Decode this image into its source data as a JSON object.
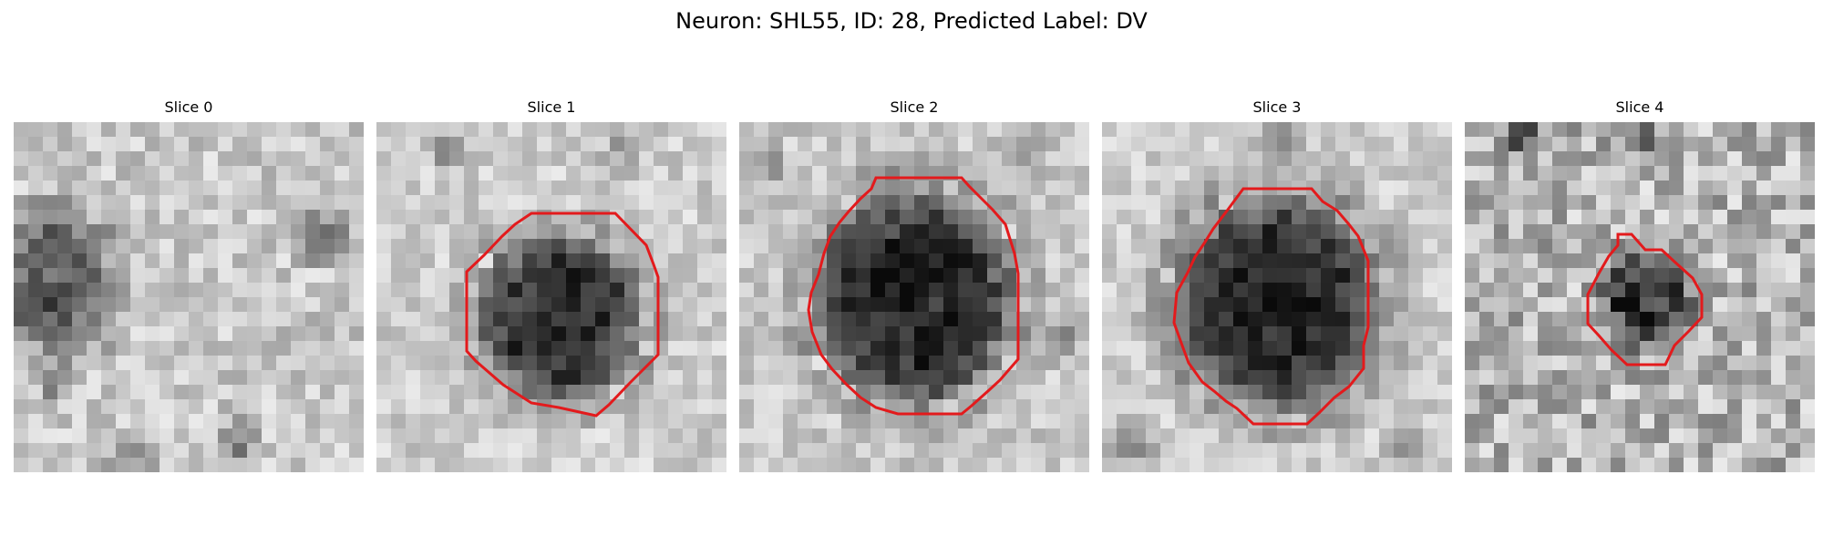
{
  "figure": {
    "title": "Neuron: SHL55, ID: 28, Predicted Label: DV"
  },
  "colors": {
    "contour": "#e31a1c",
    "background": "#ffffff"
  },
  "panels": [
    {
      "title": "Slice 0",
      "has_contour": false
    },
    {
      "title": "Slice 1",
      "has_contour": true
    },
    {
      "title": "Slice 2",
      "has_contour": true
    },
    {
      "title": "Slice 3",
      "has_contour": true
    },
    {
      "title": "Slice 4",
      "has_contour": true
    }
  ]
}
